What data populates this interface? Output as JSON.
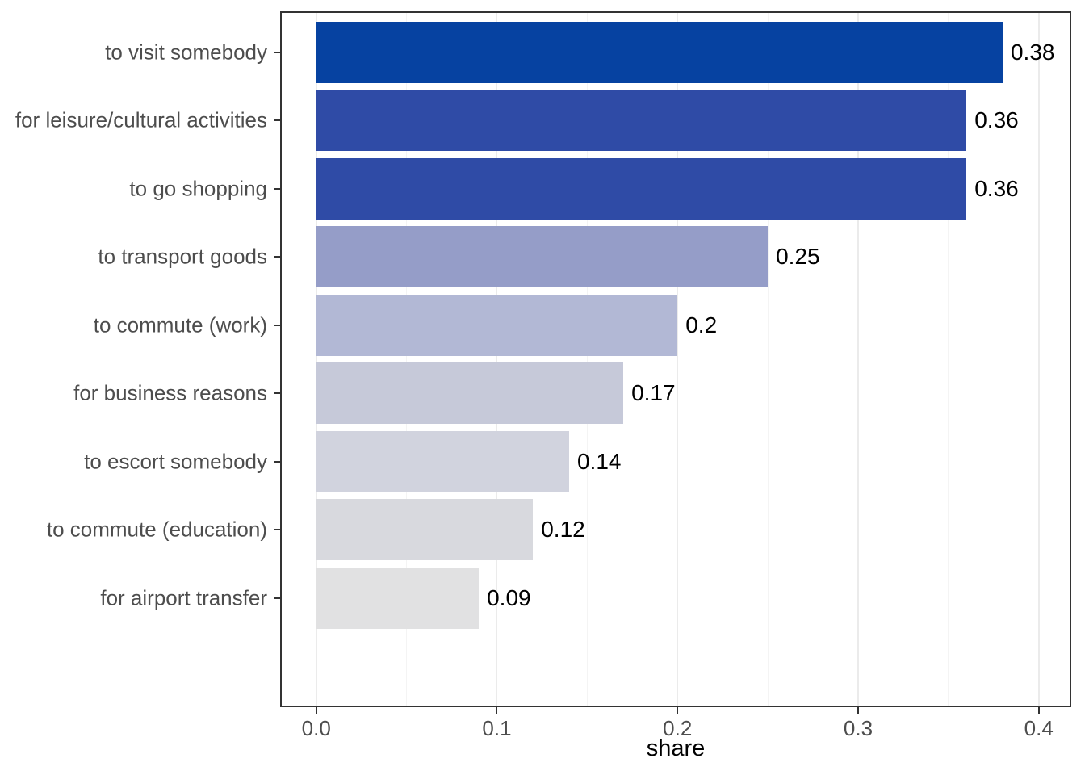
{
  "chart_data": {
    "type": "bar",
    "orientation": "horizontal",
    "title": "",
    "xlabel": "share",
    "ylabel": "",
    "categories": [
      "to visit somebody",
      "for leisure/cultural activities",
      "to go shopping",
      "to transport goods",
      "to commute (work)",
      "for business reasons",
      "to escort somebody",
      "to commute (education)",
      "for airport transfer"
    ],
    "values": [
      0.38,
      0.36,
      0.36,
      0.25,
      0.2,
      0.17,
      0.14,
      0.12,
      0.09
    ],
    "value_labels": [
      "0.38",
      "0.36",
      "0.36",
      "0.25",
      "0.2",
      "0.17",
      "0.14",
      "0.12",
      "0.09"
    ],
    "bar_colors": [
      "#0642a1",
      "#2f4ba6",
      "#2f4ba6",
      "#959dc8",
      "#b2b8d5",
      "#c6c9d9",
      "#d1d3de",
      "#d8d9de",
      "#e1e1e2"
    ],
    "xlim": [
      -0.02,
      0.418
    ],
    "x_ticks": [
      0,
      0.1,
      0.2,
      0.3,
      0.4
    ],
    "x_tick_labels": [
      "0.0",
      "0.1",
      "0.2",
      "0.3",
      "0.4"
    ],
    "x_minor_ticks": [
      0.05,
      0.15,
      0.25,
      0.35
    ],
    "grid": "vertical major and minor gridlines, white panel background",
    "legend": "none",
    "colors": {
      "panel_border": "#333333",
      "grid_major": "#ebebeb",
      "grid_minor": "#f4f4f4",
      "axis_text": "#4d4d4d",
      "value_label": "#000000",
      "axis_title": "#000000",
      "background": "#ffffff"
    }
  }
}
